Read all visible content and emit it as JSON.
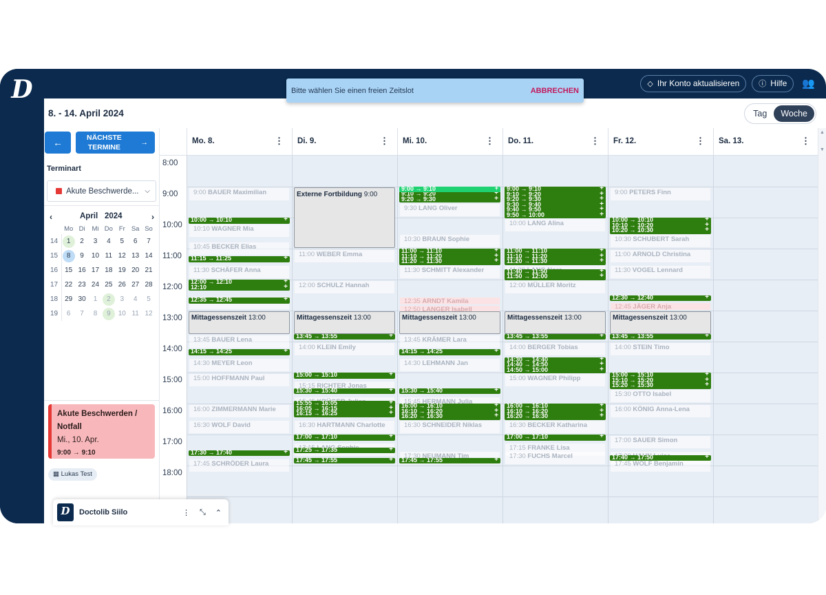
{
  "topbar": {
    "update_account": "Ihr Konto aktualisieren",
    "help": "Hilfe"
  },
  "toast": {
    "message": "Bitte wählen Sie einen freien Zeitslot",
    "cancel": "ABBRECHEN"
  },
  "header": {
    "date_range": "8. - 14. April 2024",
    "view_day": "Tag",
    "view_week": "Woche"
  },
  "sidebar": {
    "next_label_line1": "NÄCHSTE",
    "next_label_line2": "TERMINE",
    "termin_label": "Terminart",
    "termin_value": "Akute Beschwerde..."
  },
  "minical": {
    "month": "April",
    "year": "2024",
    "dow": [
      "Mo",
      "Di",
      "Mi",
      "Do",
      "Fr",
      "Sa",
      "So"
    ],
    "weeks": [
      {
        "wk": "14",
        "days": [
          "1",
          "2",
          "3",
          "4",
          "5",
          "6",
          "7"
        ]
      },
      {
        "wk": "15",
        "days": [
          "8",
          "9",
          "10",
          "11",
          "12",
          "13",
          "14"
        ]
      },
      {
        "wk": "16",
        "days": [
          "15",
          "16",
          "17",
          "18",
          "19",
          "20",
          "21"
        ]
      },
      {
        "wk": "17",
        "days": [
          "22",
          "23",
          "24",
          "25",
          "26",
          "27",
          "28"
        ]
      },
      {
        "wk": "18",
        "days": [
          "29",
          "30",
          "1",
          "2",
          "3",
          "4",
          "5"
        ]
      },
      {
        "wk": "19",
        "days": [
          "6",
          "7",
          "8",
          "9",
          "10",
          "11",
          "12"
        ]
      }
    ]
  },
  "appointment_card": {
    "title_line1": "Akute Beschwerden /",
    "title_line2": "Notfall",
    "date": "Mi., 10. Apr.",
    "time": "9:00 → 9:10"
  },
  "chip": {
    "label": "Lukas Test"
  },
  "siilo": {
    "name": "Doctolib Siilo"
  },
  "days": [
    "Mo. 8.",
    "Di. 9.",
    "Mi. 10.",
    "Do. 11.",
    "Fr. 12.",
    "Sa. 13."
  ],
  "hours": [
    "8:00",
    "9:00",
    "10:00",
    "11:00",
    "12:00",
    "13:00",
    "14:00",
    "15:00",
    "16:00",
    "17:00",
    "18:00"
  ],
  "lunch": {
    "label": "Mittagessenszeit",
    "time": "13:00"
  },
  "training": {
    "label": "Externe Fortbildung",
    "time": "9:00"
  },
  "faint_events": [
    {
      "d": 0,
      "t": "9:00",
      "n": "BAUER Maximilian"
    },
    {
      "d": 0,
      "t": "10:10",
      "n": "WAGNER Mia"
    },
    {
      "d": 0,
      "t": "10:45",
      "n": "BECKER Elias"
    },
    {
      "d": 0,
      "t": "11:30",
      "n": "SCHÄFER Anna"
    },
    {
      "d": 0,
      "t": "12:30",
      "n": "FISCHER Lukas"
    },
    {
      "d": 0,
      "t": "13:45",
      "n": "BAUER Lena"
    },
    {
      "d": 0,
      "t": "14:30",
      "n": "MEYER Leon"
    },
    {
      "d": 0,
      "t": "15:00",
      "n": "HOFFMANN Paul"
    },
    {
      "d": 0,
      "t": "16:00",
      "n": "ZIMMERMANN Marie"
    },
    {
      "d": 0,
      "t": "16:30",
      "n": "WOLF David"
    },
    {
      "d": 0,
      "t": "17:45",
      "n": "SCHRÖDER Laura"
    },
    {
      "d": 1,
      "t": "11:00",
      "n": "WEBER Emma"
    },
    {
      "d": 1,
      "t": "12:00",
      "n": "SCHULZ Hannah"
    },
    {
      "d": 1,
      "t": "14:00",
      "n": "KLEIN Emily"
    },
    {
      "d": 1,
      "t": "15:15",
      "n": "RICHTER Jonas"
    },
    {
      "d": 1,
      "t": "15:45",
      "n": "KRÜGER Julian"
    },
    {
      "d": 1,
      "t": "16:30",
      "n": "HARTMANN Charlotte"
    },
    {
      "d": 1,
      "t": "17:15",
      "n": "LANG Sophie"
    },
    {
      "d": 2,
      "t": "9:30",
      "n": "LANG Oliver"
    },
    {
      "d": 2,
      "t": "10:30",
      "n": "BRAUN Sophie"
    },
    {
      "d": 2,
      "t": "11:30",
      "n": "SCHMITT Alexander"
    },
    {
      "d": 2,
      "t": "13:45",
      "n": "KRÄMER Lara"
    },
    {
      "d": 2,
      "t": "14:30",
      "n": "LEHMANN Jan"
    },
    {
      "d": 2,
      "t": "15:45",
      "n": "HERMANN Julia"
    },
    {
      "d": 2,
      "t": "16:30",
      "n": "SCHNEIDER Niklas"
    },
    {
      "d": 2,
      "t": "17:30",
      "n": "NEUMANN Tim"
    },
    {
      "d": 3,
      "t": "10:00",
      "n": "LANG Alina"
    },
    {
      "d": 3,
      "t": "11:30",
      "n": "LANG Nora"
    },
    {
      "d": 3,
      "t": "12:00",
      "n": "MÜLLER Moritz"
    },
    {
      "d": 3,
      "t": "14:00",
      "n": "BERGER Tobias"
    },
    {
      "d": 3,
      "t": "15:00",
      "n": "WAGNER Philipp"
    },
    {
      "d": 3,
      "t": "16:30",
      "n": "BECKER Katharina"
    },
    {
      "d": 3,
      "t": "17:15",
      "n": "FRANKE Lisa"
    },
    {
      "d": 3,
      "t": "17:30",
      "n": "FUCHS Marcel"
    },
    {
      "d": 4,
      "t": "9:00",
      "n": "PETERS Finn"
    },
    {
      "d": 4,
      "t": "10:30",
      "n": "SCHUBERT Sarah"
    },
    {
      "d": 4,
      "t": "11:00",
      "n": "ARNOLD Christina"
    },
    {
      "d": 4,
      "t": "11:30",
      "n": "VOGEL Lennard"
    },
    {
      "d": 4,
      "t": "14:00",
      "n": "STEIN Timo"
    },
    {
      "d": 4,
      "t": "15:30",
      "n": "OTTO Isabel"
    },
    {
      "d": 4,
      "t": "16:00",
      "n": "KÖNIG Anna-Lena"
    },
    {
      "d": 4,
      "t": "17:00",
      "n": "SAUER Simon"
    },
    {
      "d": 4,
      "t": "17:30",
      "n": "HAHN Luisa"
    },
    {
      "d": 4,
      "t": "17:45",
      "n": "WOLF Benjamin"
    }
  ],
  "pink_events": [
    {
      "d": 2,
      "t": "12:35",
      "n": "ARNDT Kamila"
    },
    {
      "d": 2,
      "t": "12:50",
      "n": "LANGER Isabell"
    },
    {
      "d": 4,
      "t": "12:45",
      "n": "JÄGER Anja"
    }
  ],
  "slots": [
    {
      "d": 0,
      "lines": [
        "10:00 → 10:10"
      ],
      "s": 10.0
    },
    {
      "d": 0,
      "lines": [
        "11:15 → 11:25"
      ],
      "s": 11.25
    },
    {
      "d": 0,
      "lines": [
        "12:00 → 12:10",
        "12:10"
      ],
      "s": 12.0
    },
    {
      "d": 0,
      "lines": [
        "12:35 → 12:45"
      ],
      "s": 12.583
    },
    {
      "d": 0,
      "lines": [
        "14:15 → 14:25"
      ],
      "s": 14.25
    },
    {
      "d": 0,
      "lines": [
        "17:30 → 17:40"
      ],
      "s": 17.5
    },
    {
      "d": 1,
      "lines": [
        "13:45 → 13:55"
      ],
      "s": 13.75
    },
    {
      "d": 1,
      "lines": [
        "15:00 → 15:10"
      ],
      "s": 15.0
    },
    {
      "d": 1,
      "lines": [
        "15:30 → 15:40"
      ],
      "s": 15.5
    },
    {
      "d": 1,
      "lines": [
        "15:55 → 16:05",
        "16:05 → 16:15",
        "16:15 → 16:25"
      ],
      "s": 15.916
    },
    {
      "d": 1,
      "lines": [
        "17:00 → 17:10"
      ],
      "s": 17.0
    },
    {
      "d": 1,
      "lines": [
        "17:25 → 17:35"
      ],
      "s": 17.416
    },
    {
      "d": 1,
      "lines": [
        "17:45 → 17:55"
      ],
      "s": 17.75
    },
    {
      "d": 2,
      "lines": [
        "9:10 → 9:20",
        "9:20 → 9:30"
      ],
      "s": 9.166
    },
    {
      "d": 2,
      "lines": [
        "11:00 → 11:10",
        "11:10 → 11:20",
        "11:20 → 11:30"
      ],
      "s": 11.0
    },
    {
      "d": 2,
      "lines": [
        "14:15 → 14:25"
      ],
      "s": 14.25
    },
    {
      "d": 2,
      "lines": [
        "15:30 → 15:40"
      ],
      "s": 15.5
    },
    {
      "d": 2,
      "lines": [
        "16:00 → 16:10",
        "16:10 → 16:20",
        "16:20 → 16:30"
      ],
      "s": 16.0
    },
    {
      "d": 2,
      "lines": [
        "17:45 → 17:55"
      ],
      "s": 17.75
    },
    {
      "d": 3,
      "lines": [
        "9:00 → 9:10",
        "9:10 → 9:20",
        "9:20 → 9:30",
        "9:30 → 9:40",
        "9:40 → 9:50",
        "9:50 → 10:00"
      ],
      "s": 9.0
    },
    {
      "d": 3,
      "lines": [
        "11:00 → 11:10",
        "11:10 → 11:20",
        "11:20 → 11:30"
      ],
      "s": 11.0
    },
    {
      "d": 3,
      "lines": [
        "11:40 → 11:50",
        "11:50 → 12:00"
      ],
      "s": 11.666
    },
    {
      "d": 3,
      "lines": [
        "13:45 → 13:55"
      ],
      "s": 13.75
    },
    {
      "d": 3,
      "lines": [
        "14:30 → 14:40",
        "14:40 → 14:50",
        "14:50 → 15:00"
      ],
      "s": 14.5
    },
    {
      "d": 3,
      "lines": [
        "16:00 → 16:10",
        "16:10 → 16:20",
        "16:20 → 16:30"
      ],
      "s": 16.0
    },
    {
      "d": 3,
      "lines": [
        "17:00 → 17:10"
      ],
      "s": 17.0
    },
    {
      "d": 4,
      "lines": [
        "10:00 → 10:10",
        "10:10 → 10:20",
        "10:20 → 10:30"
      ],
      "s": 10.0
    },
    {
      "d": 4,
      "lines": [
        "12:30 → 12:40"
      ],
      "s": 12.5
    },
    {
      "d": 4,
      "lines": [
        "13:45 → 13:55"
      ],
      "s": 13.75
    },
    {
      "d": 4,
      "lines": [
        "15:00 → 15:10",
        "15:10 → 15:20",
        "15:20 → 15:30"
      ],
      "s": 15.0
    },
    {
      "d": 4,
      "lines": [
        "17:40 → 17:50"
      ],
      "s": 17.666
    }
  ],
  "selected_slot": {
    "d": 2,
    "label": "9:00 → 9:10",
    "s": 9.0
  }
}
